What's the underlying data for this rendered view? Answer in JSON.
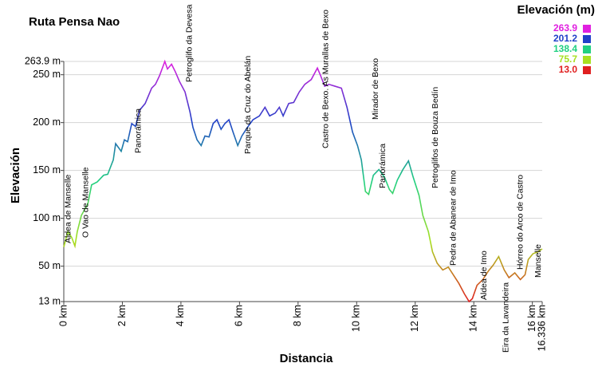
{
  "chart_data": {
    "type": "line",
    "title": "Ruta Pensa Nao",
    "x_label": "Distancia",
    "y_label": "Elevación",
    "x": [
      0,
      0.14,
      0.27,
      0.38,
      0.46,
      0.6,
      0.82,
      0.95,
      1.14,
      1.36,
      1.5,
      1.69,
      1.77,
      1.96,
      2.07,
      2.18,
      2.32,
      2.45,
      2.59,
      2.78,
      3.0,
      3.13,
      3.27,
      3.45,
      3.54,
      3.68,
      3.81,
      3.95,
      4.14,
      4.31,
      4.41,
      4.55,
      4.69,
      4.82,
      4.96,
      5.1,
      5.23,
      5.37,
      5.5,
      5.64,
      5.78,
      5.94,
      6.08,
      6.27,
      6.46,
      6.68,
      6.87,
      7.03,
      7.22,
      7.36,
      7.49,
      7.68,
      7.85,
      8.04,
      8.23,
      8.45,
      8.66,
      8.77,
      8.91,
      9.05,
      9.26,
      9.48,
      9.67,
      9.86,
      10.03,
      10.16,
      10.3,
      10.41,
      10.57,
      10.76,
      10.95,
      11.12,
      11.23,
      11.39,
      11.58,
      11.77,
      11.93,
      12.13,
      12.26,
      12.45,
      12.59,
      12.75,
      12.94,
      13.13,
      13.3,
      13.49,
      13.68,
      13.84,
      13.95,
      14.11,
      14.31,
      14.5,
      14.66,
      14.85,
      15.04,
      15.2,
      15.4,
      15.59,
      15.75,
      15.86,
      16.02,
      16.19,
      16.336
    ],
    "series": [
      {
        "values": [
          70,
          86,
          80,
          71,
          86,
          103,
          115,
          135,
          138,
          145,
          146,
          161,
          178,
          170,
          182,
          180,
          199,
          196,
          213,
          220,
          236,
          240,
          249,
          263.9,
          256,
          261,
          253,
          243,
          232,
          211,
          195,
          182,
          176,
          186,
          185,
          199,
          203,
          193,
          199,
          203,
          190,
          176,
          186,
          195,
          203,
          207,
          216,
          207,
          210,
          216,
          207,
          220,
          221,
          232,
          240,
          245,
          257,
          249,
          238,
          240,
          238,
          236,
          216,
          190,
          176,
          161,
          128,
          125,
          145,
          151,
          143,
          130,
          126,
          140,
          151,
          160,
          143,
          124,
          103,
          86,
          65,
          53,
          46,
          49,
          41,
          32,
          21,
          13,
          16,
          30,
          36,
          45,
          51,
          60,
          46,
          38,
          43,
          36,
          41,
          57,
          63,
          65,
          68
        ]
      }
    ],
    "xlim": [
      0,
      16.336
    ],
    "ylim": [
      13,
      263.9
    ],
    "xticks": [
      {
        "value": 0,
        "label": "0 km"
      },
      {
        "value": 2,
        "label": "2 km"
      },
      {
        "value": 4,
        "label": "4 km"
      },
      {
        "value": 6,
        "label": "6 km"
      },
      {
        "value": 8,
        "label": "8 km"
      },
      {
        "value": 10,
        "label": "10 km"
      },
      {
        "value": 12,
        "label": "12 km"
      },
      {
        "value": 14,
        "label": "14 km"
      },
      {
        "value": 16,
        "label": "16 km"
      },
      {
        "value": 16.336,
        "label": "16.336 km"
      }
    ],
    "yticks": [
      {
        "value": 13,
        "label": "13 m"
      },
      {
        "value": 50,
        "label": "50 m"
      },
      {
        "value": 100,
        "label": "100 m"
      },
      {
        "value": 150,
        "label": "150 m"
      },
      {
        "value": 200,
        "label": "200 m"
      },
      {
        "value": 250,
        "label": "250 m"
      },
      {
        "value": 263.9,
        "label": "263.9 m"
      }
    ],
    "grid": true,
    "legend": {
      "title": "Elevación (m)",
      "position": "top-right",
      "stops": [
        {
          "value": 263.9,
          "color": "#e020e0"
        },
        {
          "value": 201.2,
          "color": "#2040c8"
        },
        {
          "value": 138.4,
          "color": "#20d080"
        },
        {
          "value": 75.7,
          "color": "#a8e020"
        },
        {
          "value": 13,
          "label": "13.0",
          "color": "#e02020"
        }
      ]
    },
    "annotations": [
      {
        "x": 0.15,
        "text": "Aldea de Manselle"
      },
      {
        "x": 0.75,
        "text": "O Vao de Manselle"
      },
      {
        "x": 2.55,
        "text": "Panorámica"
      },
      {
        "x": 4.3,
        "text": "Petroglifo da Devesa"
      },
      {
        "x": 6.3,
        "text": "Parque da Cruz do Abelán"
      },
      {
        "x": 8.95,
        "text": "Castro de Bexo. As Murallas de Bexo"
      },
      {
        "x": 10.65,
        "text": "Mirador de Bexo"
      },
      {
        "x": 10.9,
        "text": "Panorámica"
      },
      {
        "x": 12.7,
        "text": "Petroglifos de Bouza Bedín"
      },
      {
        "x": 13.3,
        "text": "Pedra de Abanear de Imo"
      },
      {
        "x": 14.35,
        "text": "Aldea de Imo"
      },
      {
        "x": 15.1,
        "text": "Eira da Lavandeira"
      },
      {
        "x": 15.6,
        "text": "Hórreo do Arco de Castro"
      },
      {
        "x": 16.2,
        "text": "Manselle"
      }
    ]
  }
}
